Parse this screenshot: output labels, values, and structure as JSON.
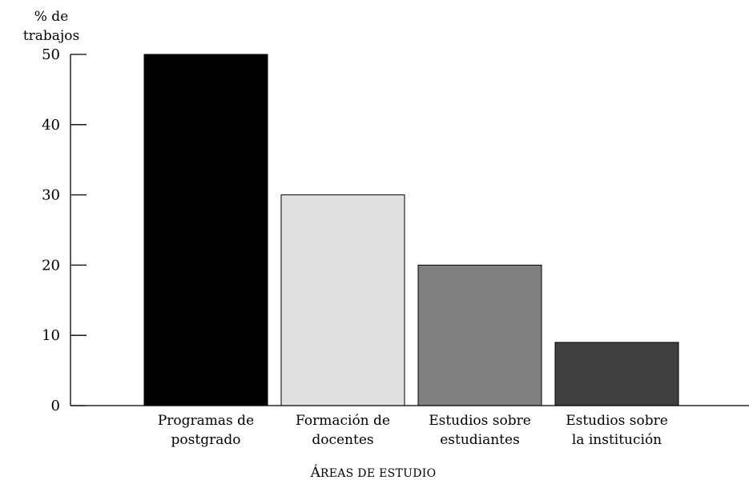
{
  "chart_data": {
    "type": "bar",
    "ylabel": [
      "% de",
      "trabajos"
    ],
    "xlabel": {
      "initial": "Á",
      "rest": "REAS DE ESTUDIO"
    },
    "categories": [
      [
        "Programas de",
        "postgrado"
      ],
      [
        "Formación de",
        "docentes"
      ],
      [
        "Estudios sobre",
        "estudiantes"
      ],
      [
        "Estudios sobre",
        "la institución"
      ]
    ],
    "values": [
      50,
      30,
      20,
      9
    ],
    "bar_colors": [
      "#000000",
      "#e0e0e0",
      "#808080",
      "#404040"
    ],
    "yticks": [
      0,
      10,
      20,
      30,
      40,
      50
    ],
    "ylim": [
      0,
      50
    ],
    "grid": false,
    "legend": false
  }
}
